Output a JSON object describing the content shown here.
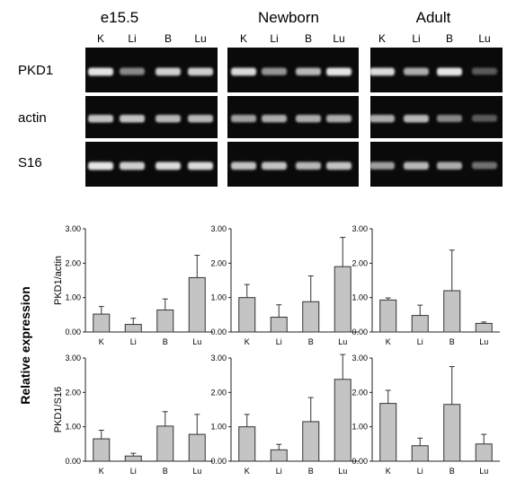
{
  "conditions": [
    "e15.5",
    "Newborn",
    "Adult"
  ],
  "lanes": [
    "K",
    "Li",
    "B",
    "Lu"
  ],
  "genes": [
    "PKD1",
    "actin",
    "S16"
  ],
  "y_common_label": "Relative expression",
  "y_tick_labels": [
    "0.00",
    "1.00",
    "2.00",
    "3.00"
  ],
  "colors": {
    "bar": "#c4c4c4",
    "gel_bg": "#0a0a0a",
    "band": "#f2f2f2"
  },
  "gel_band_intensity": [
    [
      [
        0.95,
        0.55,
        0.85,
        0.85
      ],
      [
        0.8,
        0.8,
        0.75,
        0.75
      ],
      [
        0.95,
        0.85,
        0.9,
        0.9
      ]
    ],
    [
      [
        0.9,
        0.6,
        0.75,
        0.95
      ],
      [
        0.65,
        0.7,
        0.7,
        0.7
      ],
      [
        0.8,
        0.8,
        0.75,
        0.8
      ]
    ],
    [
      [
        0.9,
        0.7,
        0.95,
        0.35
      ],
      [
        0.7,
        0.75,
        0.55,
        0.35
      ],
      [
        0.65,
        0.75,
        0.7,
        0.45
      ]
    ]
  ],
  "chart_data": [
    {
      "type": "bar",
      "condition": "e15.5",
      "ylabel": "PKD1/actin",
      "categories": [
        "K",
        "Li",
        "B",
        "Lu"
      ],
      "values": [
        0.52,
        0.22,
        0.64,
        1.58
      ],
      "errors": [
        0.22,
        0.18,
        0.32,
        0.65
      ],
      "ylim": [
        0,
        3
      ]
    },
    {
      "type": "bar",
      "condition": "Newborn",
      "ylabel": "",
      "categories": [
        "K",
        "Li",
        "B",
        "Lu"
      ],
      "values": [
        1.0,
        0.43,
        0.88,
        1.9
      ],
      "errors": [
        0.38,
        0.36,
        0.75,
        0.85
      ],
      "ylim": [
        0,
        3
      ]
    },
    {
      "type": "bar",
      "condition": "Adult",
      "ylabel": "",
      "categories": [
        "K",
        "Li",
        "B",
        "Lu"
      ],
      "values": [
        0.93,
        0.48,
        1.2,
        0.25
      ],
      "errors": [
        0.06,
        0.3,
        1.18,
        0.04
      ],
      "ylim": [
        0,
        3
      ]
    },
    {
      "type": "bar",
      "condition": "e15.5",
      "ylabel": "PKD1/S16",
      "categories": [
        "K",
        "Li",
        "B",
        "Lu"
      ],
      "values": [
        0.65,
        0.15,
        1.02,
        0.78
      ],
      "errors": [
        0.25,
        0.08,
        0.42,
        0.58
      ],
      "ylim": [
        0,
        3
      ]
    },
    {
      "type": "bar",
      "condition": "Newborn",
      "ylabel": "",
      "categories": [
        "K",
        "Li",
        "B",
        "Lu"
      ],
      "values": [
        1.0,
        0.33,
        1.15,
        2.38
      ],
      "errors": [
        0.36,
        0.16,
        0.7,
        0.72
      ],
      "ylim": [
        0,
        3
      ]
    },
    {
      "type": "bar",
      "condition": "Adult",
      "ylabel": "",
      "categories": [
        "K",
        "Li",
        "B",
        "Lu"
      ],
      "values": [
        1.68,
        0.45,
        1.65,
        0.5
      ],
      "errors": [
        0.38,
        0.22,
        1.1,
        0.28
      ],
      "ylim": [
        0,
        3
      ]
    }
  ]
}
